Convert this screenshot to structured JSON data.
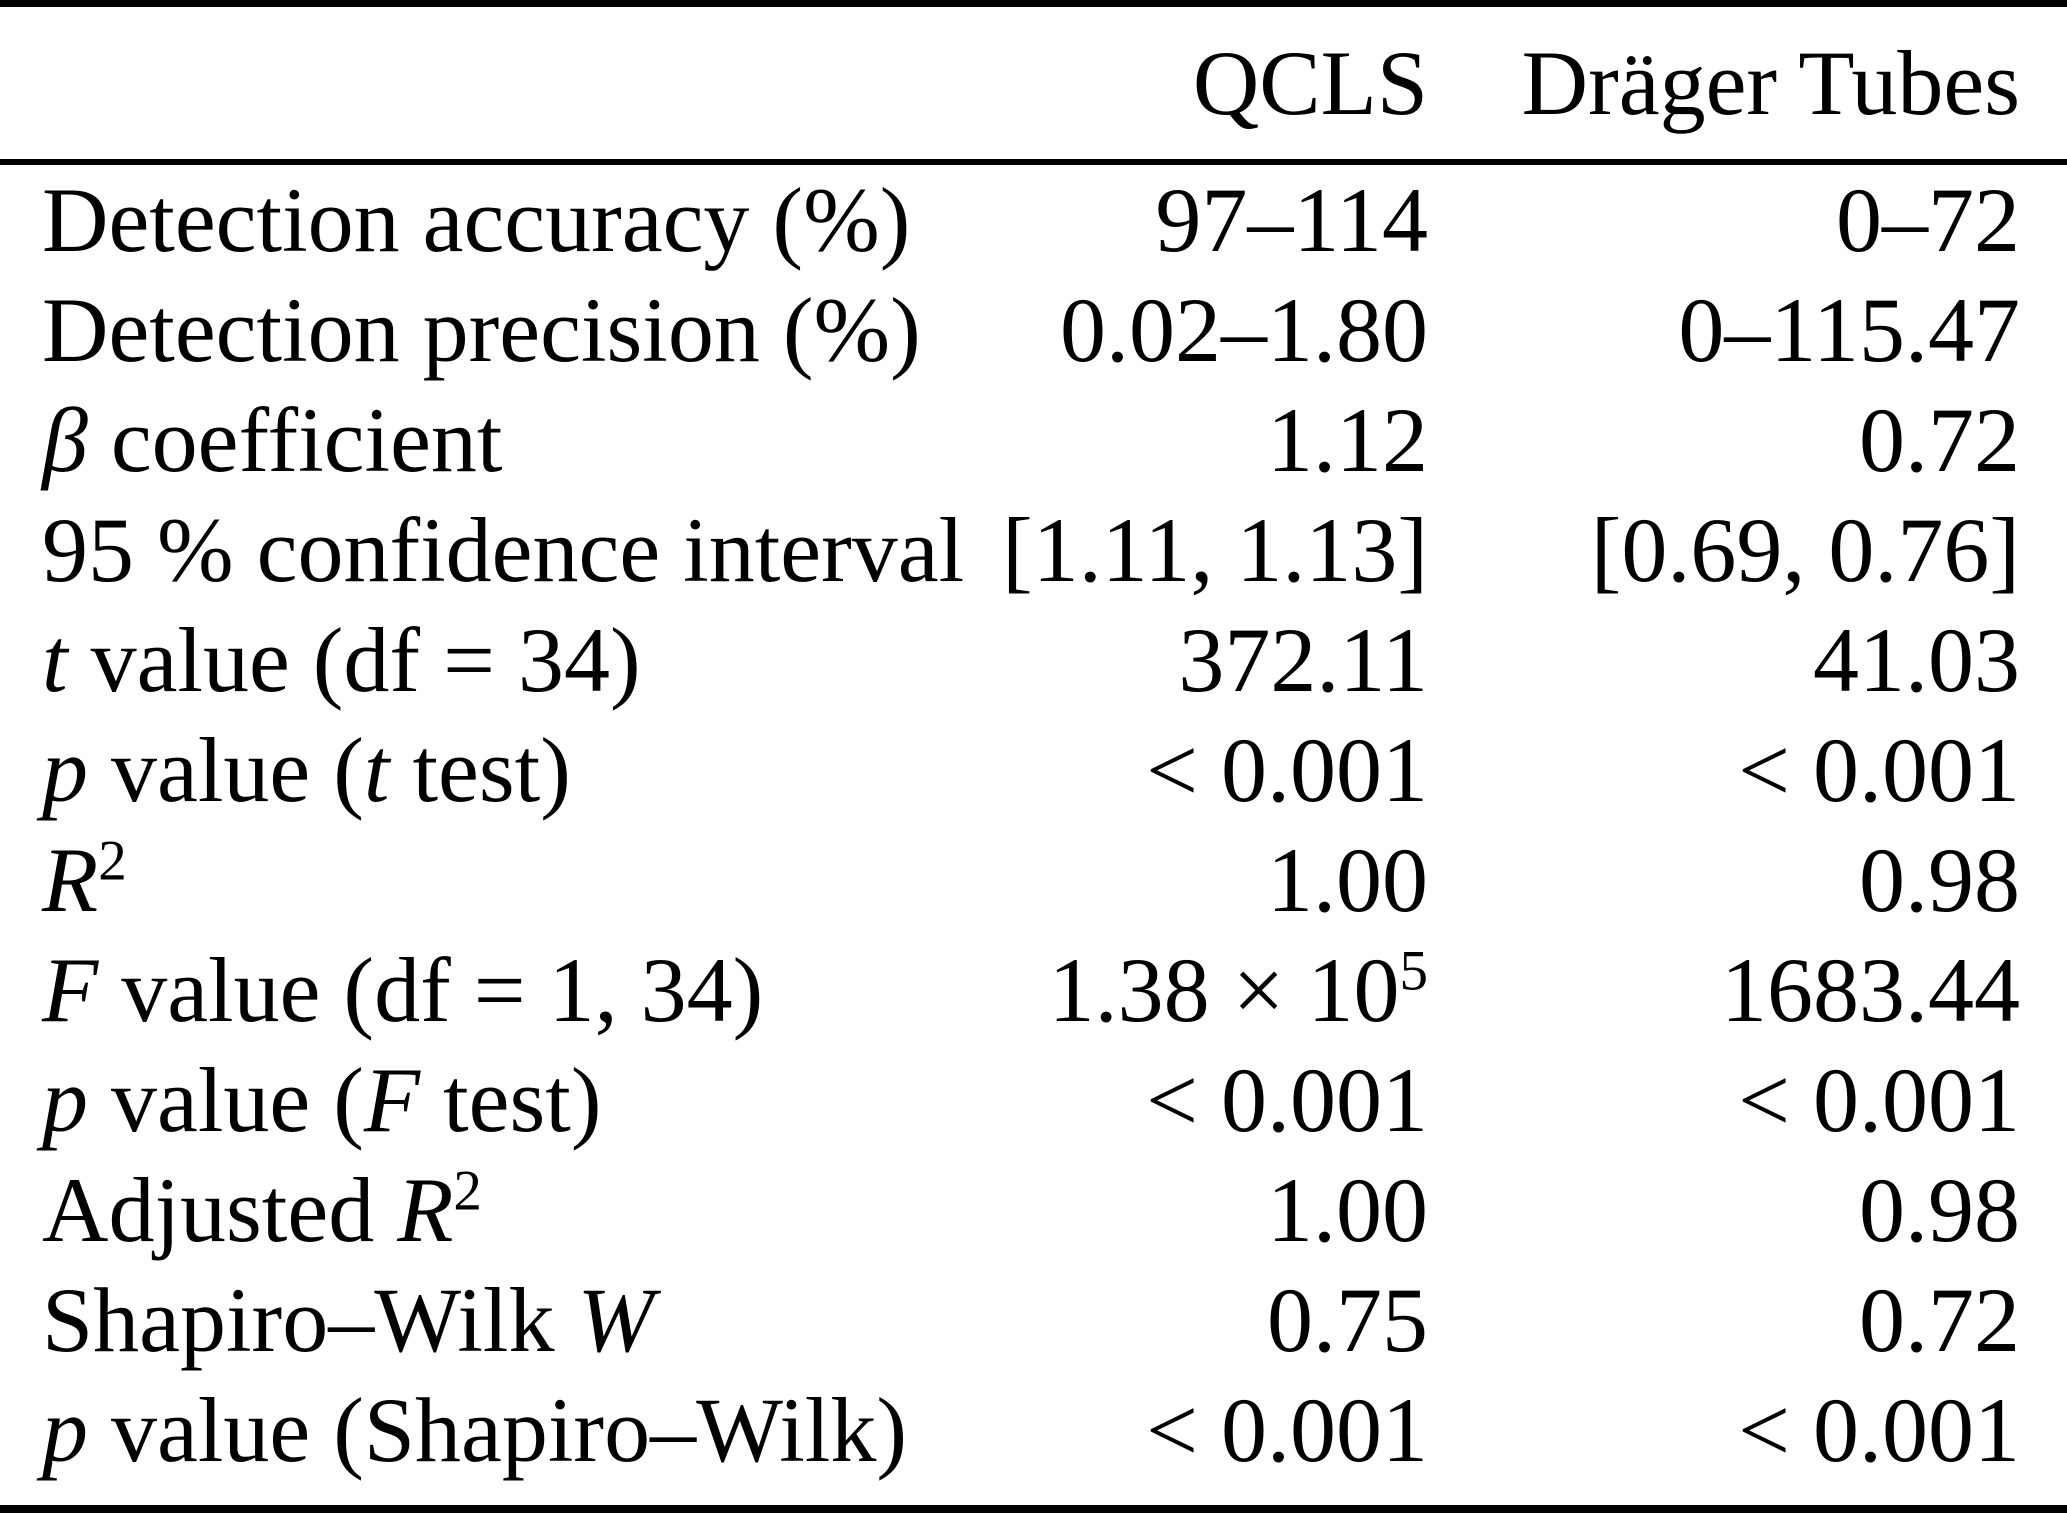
{
  "table": {
    "header": {
      "corner": "",
      "qcls": "QCLS",
      "drager": "Dräger Tubes"
    },
    "rows": [
      {
        "label": [
          {
            "t": "Detection accuracy (%)"
          }
        ],
        "qcls": [
          {
            "t": "97–114"
          }
        ],
        "drager": [
          {
            "t": "0–72"
          }
        ]
      },
      {
        "label": [
          {
            "t": "Detection precision (%)"
          }
        ],
        "qcls": [
          {
            "t": "0.02–1.80"
          }
        ],
        "drager": [
          {
            "t": "0–115.47"
          }
        ]
      },
      {
        "label": [
          {
            "t": "β",
            "i": true
          },
          {
            "t": " coefficient"
          }
        ],
        "qcls": [
          {
            "t": "1.12"
          }
        ],
        "drager": [
          {
            "t": "0.72"
          }
        ]
      },
      {
        "label": [
          {
            "t": "95 % confidence interval"
          }
        ],
        "qcls": [
          {
            "t": "[1.11, 1.13]"
          }
        ],
        "drager": [
          {
            "t": "[0.69, 0.76]"
          }
        ]
      },
      {
        "label": [
          {
            "t": "t",
            "i": true
          },
          {
            "t": " value (df = 34)"
          }
        ],
        "qcls": [
          {
            "t": "372.11"
          }
        ],
        "drager": [
          {
            "t": "41.03"
          }
        ]
      },
      {
        "label": [
          {
            "t": "p",
            "i": true
          },
          {
            "t": " value ("
          },
          {
            "t": "t",
            "i": true
          },
          {
            "t": " test)"
          }
        ],
        "qcls": [
          {
            "t": "< 0.001"
          }
        ],
        "drager": [
          {
            "t": "< 0.001"
          }
        ]
      },
      {
        "label": [
          {
            "t": "R",
            "i": true
          },
          {
            "t": "2",
            "sup": true
          }
        ],
        "qcls": [
          {
            "t": "1.00"
          }
        ],
        "drager": [
          {
            "t": "0.98"
          }
        ]
      },
      {
        "label": [
          {
            "t": "F",
            "i": true
          },
          {
            "t": " value (df = 1, 34)"
          }
        ],
        "qcls": [
          {
            "t": "1.38 × 10"
          },
          {
            "t": "5",
            "sup": true
          }
        ],
        "drager": [
          {
            "t": "1683.44"
          }
        ]
      },
      {
        "label": [
          {
            "t": "p",
            "i": true
          },
          {
            "t": " value ("
          },
          {
            "t": "F",
            "i": true
          },
          {
            "t": " test)"
          }
        ],
        "qcls": [
          {
            "t": "< 0.001"
          }
        ],
        "drager": [
          {
            "t": "< 0.001"
          }
        ]
      },
      {
        "label": [
          {
            "t": "Adjusted "
          },
          {
            "t": "R",
            "i": true
          },
          {
            "t": "2",
            "sup": true
          }
        ],
        "qcls": [
          {
            "t": "1.00"
          }
        ],
        "drager": [
          {
            "t": "0.98"
          }
        ]
      },
      {
        "label": [
          {
            "t": "Shapiro–Wilk "
          },
          {
            "t": "W",
            "i": true
          }
        ],
        "qcls": [
          {
            "t": "0.75"
          }
        ],
        "drager": [
          {
            "t": "0.72"
          }
        ]
      },
      {
        "label": [
          {
            "t": "p",
            "i": true
          },
          {
            "t": " value (Shapiro–Wilk)"
          }
        ],
        "qcls": [
          {
            "t": "< 0.001"
          }
        ],
        "drager": [
          {
            "t": "< 0.001"
          }
        ]
      }
    ]
  },
  "colors": {
    "text": "#000000",
    "background": "#ffffff",
    "rule": "#000000"
  }
}
